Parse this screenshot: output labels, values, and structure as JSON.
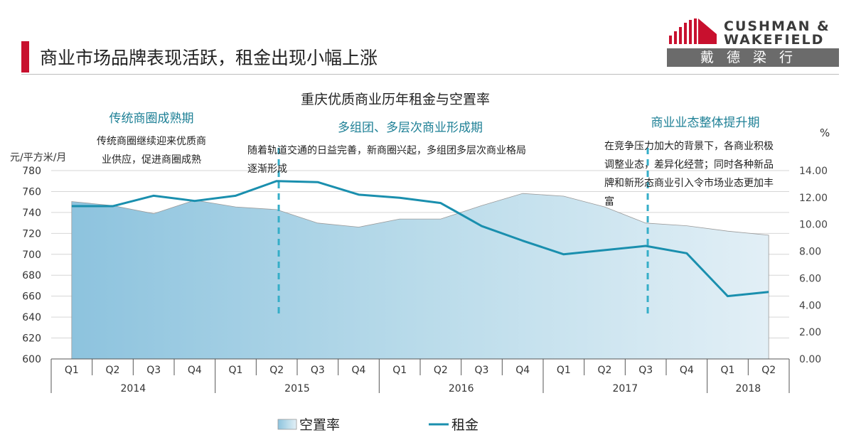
{
  "header": {
    "title": "商业市场品牌表现活跃，租金出现小幅上涨",
    "logo_line1": "CUSHMAN &",
    "logo_line2": "WAKEFIELD",
    "logo_cn": "戴德梁行"
  },
  "colors": {
    "accent": "#c8102e",
    "rent": "#1a8fae",
    "vacancy": "#8dc3de",
    "divider": "#35aec8",
    "phase_text": "#1e8096"
  },
  "phases": [
    {
      "title": "传统商圈成熟期",
      "desc": [
        "传统商圈继续迎来优质商",
        "业供应，促进商圈成熟"
      ]
    },
    {
      "title": "多组团、多层次商业形成期",
      "desc": [
        "随着轨道交通的日益完善，新商圈兴起，多组团多层次商业格局",
        "逐渐形成"
      ]
    },
    {
      "title": "商业业态整体提升期",
      "desc": [
        "在竞争压力加大的背景下，各商业积极",
        "调整业态，差异化经营；同时各种新品",
        "牌和新形态商业引入令市场业态更加丰",
        "富"
      ]
    }
  ],
  "chart_data": {
    "type": "line",
    "title": "重庆优质商业历年租金与空置率",
    "ylabel_left": "元/平方米/月",
    "ylabel_right": "%",
    "categories": [
      "Q1",
      "Q2",
      "Q3",
      "Q4",
      "Q1",
      "Q2",
      "Q3",
      "Q4",
      "Q1",
      "Q2",
      "Q3",
      "Q4",
      "Q1",
      "Q2",
      "Q3",
      "Q4",
      "Q1",
      "Q2"
    ],
    "years": [
      {
        "label": "2014",
        "span": 4
      },
      {
        "label": "2015",
        "span": 4
      },
      {
        "label": "2016",
        "span": 4
      },
      {
        "label": "2017",
        "span": 4
      },
      {
        "label": "2018",
        "span": 2
      }
    ],
    "left_axis": {
      "min": 600,
      "max": 780,
      "step": 20,
      "ticks": [
        "600",
        "620",
        "640",
        "660",
        "680",
        "700",
        "720",
        "740",
        "760",
        "780"
      ]
    },
    "right_axis": {
      "min": 0,
      "max": 14,
      "step": 2,
      "ticks": [
        "0.00",
        "2.00",
        "4.00",
        "6.00",
        "8.00",
        "10.00",
        "12.00",
        "14.00"
      ]
    },
    "grid": true,
    "legend_position": "bottom",
    "series": [
      {
        "name": "空置率",
        "type": "area",
        "axis": "right",
        "values": [
          11.7,
          11.4,
          10.8,
          11.8,
          11.3,
          11.1,
          10.1,
          9.8,
          10.4,
          10.4,
          11.4,
          12.3,
          12.1,
          11.3,
          10.1,
          9.9,
          9.5,
          9.2
        ]
      },
      {
        "name": "租金",
        "type": "line",
        "axis": "left",
        "values": [
          746,
          746,
          756,
          751,
          756,
          770,
          769,
          757,
          754,
          749,
          727,
          713,
          700,
          704,
          708,
          701,
          660,
          664
        ]
      }
    ],
    "phase_dividers_after": [
      5,
      14
    ]
  }
}
